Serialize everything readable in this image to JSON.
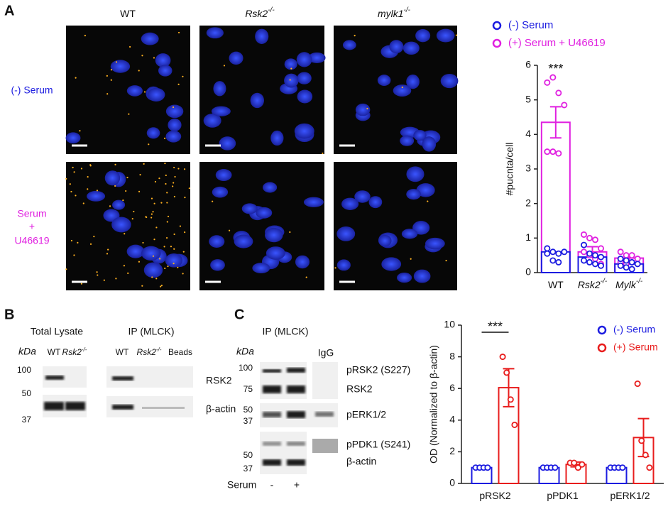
{
  "panel_labels": [
    "A",
    "B",
    "C"
  ],
  "panel_a": {
    "column_labels": [
      {
        "base": "WT",
        "sup": null
      },
      {
        "base": "Rsk2",
        "sup": "-/-"
      },
      {
        "base": "mylk1",
        "sup": "-/-"
      }
    ],
    "row_labels": [
      [
        "(-) Serum"
      ],
      [
        "Serum",
        "+",
        "U46619"
      ]
    ]
  },
  "panel_b": {
    "headers": [
      "Total Lysate",
      "IP (MLCK)"
    ],
    "kda": "kDa",
    "lanes": [
      "WT",
      "Rsk2",
      "-/-",
      "WT",
      "Rsk2",
      "-/-",
      "Beads"
    ],
    "markers": [
      "100",
      "50",
      "37"
    ],
    "bands": [
      "RSK2",
      "β-actin"
    ]
  },
  "panel_c": {
    "header": "IP (MLCK)",
    "kda": "kDa",
    "igg": "IgG",
    "markers": [
      "100",
      "75",
      "50",
      "37",
      "50",
      "37"
    ],
    "bands": [
      "pRSK2 (S227)",
      "RSK2",
      "pERK1/2",
      "pPDK1 (S241)",
      "β-actin"
    ],
    "serum": [
      "Serum",
      "-",
      "+"
    ]
  },
  "chart_data": [
    {
      "type": "bar",
      "y_label": "#pucnta/cell",
      "categories": [
        "WT",
        "Rsk2",
        "Mylk"
      ],
      "category_superscripts": [
        null,
        "-/-",
        "-/-"
      ],
      "ylim": [
        0,
        6
      ],
      "yticks": [
        0,
        1,
        2,
        3,
        4,
        5,
        6
      ],
      "annotation": "***",
      "series": [
        {
          "name": "(-) Serum",
          "color": "#1c1ce0",
          "values": [
            0.6,
            0.45,
            0.25
          ],
          "points": [
            [
              0.7,
              0.6,
              0.55,
              0.6,
              0.55,
              0.35,
              0.3
            ],
            [
              0.8,
              0.55,
              0.5,
              0.45,
              0.35,
              0.3,
              0.25,
              0.2
            ],
            [
              0.4,
              0.35,
              0.3,
              0.25,
              0.2,
              0.15,
              0.1
            ]
          ]
        },
        {
          "name": "(+) Serum + U46619",
          "color": "#e020e0",
          "values": [
            4.35,
            0.6,
            0.42
          ],
          "errors": [
            0.45,
            0.15,
            0.08
          ],
          "points": [
            [
              5.5,
              5.65,
              5.2,
              4.85,
              3.5,
              3.5,
              3.45
            ],
            [
              1.1,
              1.0,
              0.95,
              0.7,
              0.6,
              0.5,
              0.4,
              0.25
            ],
            [
              0.6,
              0.5,
              0.5,
              0.4,
              0.3,
              0.25
            ]
          ]
        }
      ]
    },
    {
      "type": "bar",
      "y_label": "OD (Normalized to β-actin)",
      "categories": [
        "pRSK2",
        "pPDK1",
        "pERK1/2"
      ],
      "category_superscripts": [
        null,
        null,
        null
      ],
      "ylim": [
        0,
        10
      ],
      "yticks": [
        0,
        2,
        4,
        6,
        8,
        10
      ],
      "annotation": "***",
      "series": [
        {
          "name": "(-) Serum",
          "color": "#1c1ce0",
          "values": [
            1,
            1,
            1
          ],
          "points": [
            [
              1,
              1,
              1,
              1
            ],
            [
              1,
              1,
              1,
              1
            ],
            [
              1,
              1,
              1,
              1
            ]
          ]
        },
        {
          "name": "(+) Serum",
          "color": "#e81c1c",
          "values": [
            6.05,
            1.2,
            2.9
          ],
          "errors": [
            1.2,
            0.15,
            1.2
          ],
          "points": [
            [
              8.0,
              7.0,
              5.3,
              3.7
            ],
            [
              1.3,
              1.3,
              1.0,
              1.2
            ],
            [
              6.3,
              2.7,
              1.8,
              1.0
            ]
          ]
        }
      ]
    }
  ]
}
